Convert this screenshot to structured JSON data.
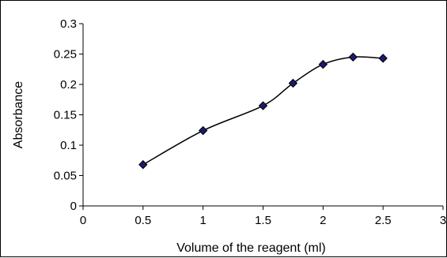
{
  "chart_data": {
    "type": "scatter",
    "title": "",
    "xlabel": "Volume of the reagent (ml)",
    "ylabel": "Absorbance",
    "xlim": [
      0,
      3
    ],
    "ylim": [
      0,
      0.3
    ],
    "x_ticks": [
      "0",
      "0.5",
      "1",
      "1.5",
      "2",
      "2.5",
      "3"
    ],
    "y_ticks": [
      "0",
      "0.05",
      "0.1",
      "0.15",
      "0.2",
      "0.25",
      "0.3"
    ],
    "grid": false,
    "legend": "none",
    "line": "smoothed",
    "marker": "diamond",
    "series": [
      {
        "x": [
          0.5,
          1.0,
          1.5,
          1.75,
          2.0,
          2.25,
          2.5
        ],
        "y": [
          0.068,
          0.124,
          0.165,
          0.202,
          0.233,
          0.245,
          0.243
        ]
      }
    ],
    "colors": {
      "marker_fill": "#1a1a6e",
      "line": "#000000",
      "axis": "#000000"
    }
  }
}
